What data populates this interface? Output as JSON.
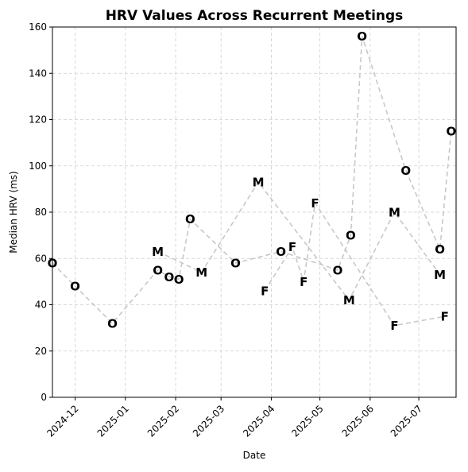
{
  "chart_data": {
    "type": "scatter",
    "title": "HRV Values Across Recurrent Meetings",
    "xlabel": "Date",
    "ylabel": "Median HRV (ms)",
    "xlim": [
      "2024-11-17",
      "2025-07-24"
    ],
    "ylim": [
      0,
      160
    ],
    "x_ticks": [
      "2024-12",
      "2025-01",
      "2025-02",
      "2025-03",
      "2025-04",
      "2025-05",
      "2025-06",
      "2025-07"
    ],
    "y_ticks": [
      0,
      20,
      40,
      60,
      80,
      100,
      120,
      140,
      160
    ],
    "grid": true,
    "line_color": "#c8c8c8",
    "text_color": "#000000",
    "series": [
      {
        "name": "O",
        "points": [
          {
            "x": "2024-11-17",
            "y": 58
          },
          {
            "x": "2024-12-01",
            "y": 48
          },
          {
            "x": "2024-12-24",
            "y": 32
          },
          {
            "x": "2025-01-21",
            "y": 55
          },
          {
            "x": "2025-01-28",
            "y": 52
          },
          {
            "x": "2025-02-03",
            "y": 51
          },
          {
            "x": "2025-02-10",
            "y": 77
          },
          {
            "x": "2025-03-10",
            "y": 58
          },
          {
            "x": "2025-04-07",
            "y": 63
          },
          {
            "x": "2025-05-12",
            "y": 55
          },
          {
            "x": "2025-05-20",
            "y": 70
          },
          {
            "x": "2025-05-27",
            "y": 156
          },
          {
            "x": "2025-06-23",
            "y": 98
          },
          {
            "x": "2025-07-14",
            "y": 64
          },
          {
            "x": "2025-07-21",
            "y": 115
          }
        ]
      },
      {
        "name": "M",
        "points": [
          {
            "x": "2025-01-21",
            "y": 63
          },
          {
            "x": "2025-02-17",
            "y": 54
          },
          {
            "x": "2025-03-24",
            "y": 93
          },
          {
            "x": "2025-05-19",
            "y": 42
          },
          {
            "x": "2025-06-16",
            "y": 80
          },
          {
            "x": "2025-07-14",
            "y": 53
          }
        ]
      },
      {
        "name": "F",
        "points": [
          {
            "x": "2025-03-28",
            "y": 46
          },
          {
            "x": "2025-04-14",
            "y": 65
          },
          {
            "x": "2025-04-21",
            "y": 50
          },
          {
            "x": "2025-04-28",
            "y": 84
          },
          {
            "x": "2025-06-16",
            "y": 31
          },
          {
            "x": "2025-07-17",
            "y": 35
          }
        ]
      }
    ]
  }
}
